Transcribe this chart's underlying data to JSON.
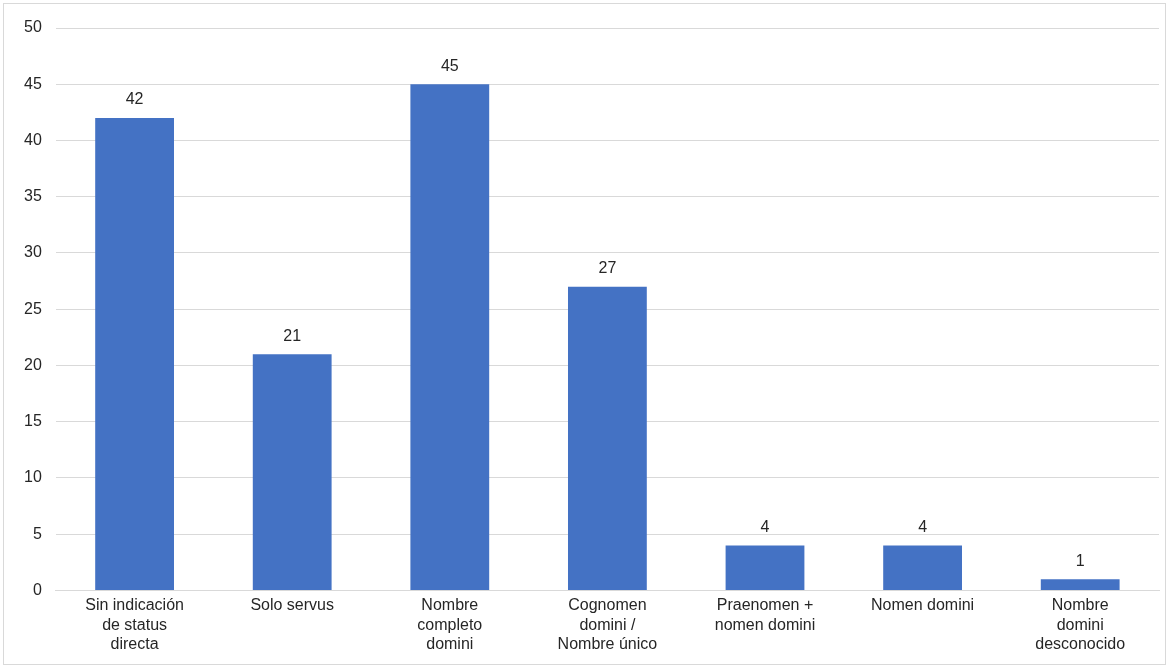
{
  "chart_data": {
    "type": "bar",
    "categories": [
      "Sin indicación\nde status\ndirecta",
      "Solo servus",
      "Nombre\ncompleto\ndomini",
      "Cognomen\ndomini /\nNombre único",
      "Praenomen +\nnomen domini",
      "Nomen domini",
      "Nombre\ndomini\ndesconocido"
    ],
    "values": [
      42,
      21,
      45,
      27,
      4,
      4,
      1
    ],
    "color": "#4472c4",
    "ylim": [
      0,
      50
    ],
    "yticks": [
      0,
      5,
      10,
      15,
      20,
      25,
      30,
      35,
      40,
      45,
      50
    ],
    "grid": "y",
    "legend": false,
    "data_labels": true
  }
}
